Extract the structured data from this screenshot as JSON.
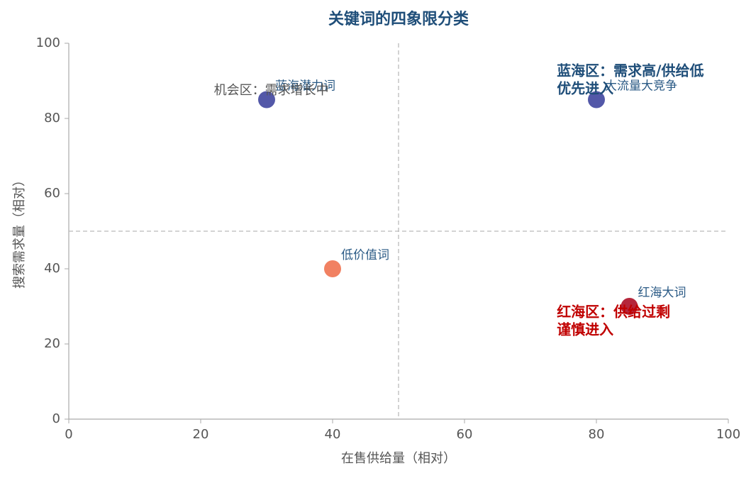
{
  "chart_data": {
    "type": "scatter",
    "title": "关键词的四象限分类",
    "x_label": "在售供给量（相对）",
    "y_label": "搜索需求量（相对）",
    "xlim": [
      0,
      100
    ],
    "ylim": [
      0,
      100
    ],
    "xticks": [
      0,
      20,
      40,
      60,
      80,
      100
    ],
    "yticks": [
      0,
      20,
      40,
      60,
      80,
      100
    ],
    "reference_lines": {
      "x": 50,
      "y": 50
    },
    "points": [
      {
        "label": "蓝海潜力词",
        "x": 30,
        "y": 85,
        "color": "#4a4fa3"
      },
      {
        "label": "大流量大竞争",
        "x": 80,
        "y": 85,
        "color": "#4a4fa3"
      },
      {
        "label": "低价值词",
        "x": 40,
        "y": 40,
        "color": "#f07a5a"
      },
      {
        "label": "红海大词",
        "x": 85,
        "y": 30,
        "color": "#b11a30"
      }
    ],
    "annotations": [
      {
        "lines": [
          "机会区：需求增长中"
        ],
        "x": 22,
        "y": 87.4,
        "color": "#555555",
        "bold": false
      },
      {
        "lines": [
          "蓝海区：需求高/供给低",
          "优先进入"
        ],
        "x": 74,
        "y": 92.5,
        "color": "#1f4e79",
        "bold": true
      },
      {
        "lines": [
          "红海区：供给过剩",
          "谨慎进入"
        ],
        "x": 74,
        "y": 28.3,
        "color": "#c00000",
        "bold": true
      }
    ]
  }
}
